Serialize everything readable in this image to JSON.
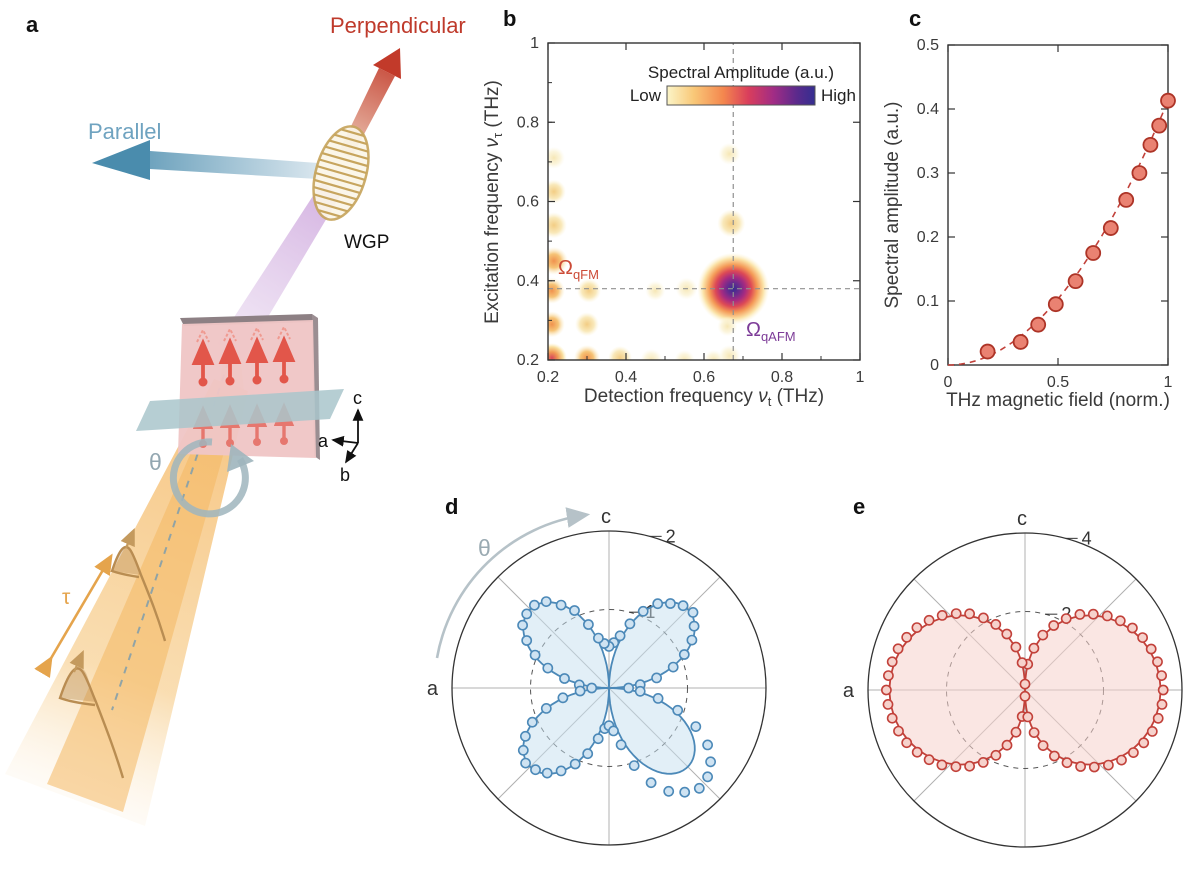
{
  "panels": {
    "a": "a",
    "b": "b",
    "c": "c",
    "d": "d",
    "e": "e"
  },
  "panel_a": {
    "labels": {
      "perpendicular": "Perpendicular",
      "parallel": "Parallel",
      "wgp": "WGP",
      "theta": "θ",
      "tau": "τ",
      "axis_a": "a",
      "axis_b": "b",
      "axis_c": "c"
    },
    "colors": {
      "perpendicular_text": "#bf3a2b",
      "parallel_text": "#6fa3c0",
      "beam_orange": "#f6c179",
      "tau_arrow": "#e5a44c",
      "pulse": "#b98d52",
      "sample_pink": "#efc6c6",
      "spin_red": "#e2564a",
      "plane_teal": "#a9c6cb",
      "purple_beam": "#d5b5e2",
      "wgp_gold": "#c7a55e",
      "theta_gray": "#93a7b1"
    }
  },
  "chart_data": [
    {
      "id": "panel_b",
      "type": "heatmap",
      "xlabel": {
        "pre": "Detection frequency ",
        "sym": "ν",
        "sub": "t",
        "post": " (THz)"
      },
      "ylabel": {
        "pre": "Excitation frequency ",
        "sym": "ν",
        "sub": "τ",
        "post": " (THz)"
      },
      "xlim": [
        0.2,
        1
      ],
      "ylim": [
        0.2,
        1
      ],
      "xticks": [
        0.2,
        0.4,
        0.6,
        0.8,
        1
      ],
      "xtick_labels": [
        "0.2",
        "0.4",
        "0.6",
        "0.8",
        "1"
      ],
      "yticks": [
        0.2,
        0.4,
        0.6,
        0.8,
        1
      ],
      "ytick_labels": [
        "0.2",
        "0.4",
        "0.6",
        "0.8",
        "1"
      ],
      "grid": false,
      "crosshair": {
        "x": 0.675,
        "y": 0.38
      },
      "colorbar": {
        "title": "Spectral Amplitude (a.u.)",
        "low": "Low",
        "high": "High",
        "stops": [
          "#fbf5c8",
          "#f9c878",
          "#f4874e",
          "#d93e5c",
          "#a12c85",
          "#5a2a8c",
          "#342e90"
        ]
      },
      "annotations": [
        {
          "sym": "Ω",
          "sub": "qFM",
          "x": 0.225,
          "y": 0.43,
          "color": "#cc4b37"
        },
        {
          "sym": "Ω",
          "sub": "qAFM",
          "x": 0.7,
          "y": 0.265,
          "color": "#7d3c98"
        }
      ],
      "peaks": [
        {
          "x": 0.675,
          "y": 0.38,
          "level": "main",
          "r": 36
        },
        {
          "x": 0.21,
          "y": 0.205,
          "level": "red",
          "r": 15
        },
        {
          "x": 0.21,
          "y": 0.29,
          "level": "orange",
          "r": 13
        },
        {
          "x": 0.21,
          "y": 0.375,
          "level": "orange",
          "r": 13
        },
        {
          "x": 0.215,
          "y": 0.45,
          "level": "orange",
          "r": 14
        },
        {
          "x": 0.215,
          "y": 0.54,
          "level": "weak",
          "r": 13
        },
        {
          "x": 0.215,
          "y": 0.625,
          "level": "weak",
          "r": 12
        },
        {
          "x": 0.215,
          "y": 0.71,
          "level": "faint",
          "r": 11
        },
        {
          "x": 0.3,
          "y": 0.205,
          "level": "orange",
          "r": 13
        },
        {
          "x": 0.3,
          "y": 0.29,
          "level": "weak",
          "r": 12
        },
        {
          "x": 0.305,
          "y": 0.375,
          "level": "weak",
          "r": 12
        },
        {
          "x": 0.385,
          "y": 0.205,
          "level": "weak",
          "r": 12
        },
        {
          "x": 0.465,
          "y": 0.2,
          "level": "faint",
          "r": 11
        },
        {
          "x": 0.55,
          "y": 0.2,
          "level": "faint",
          "r": 10
        },
        {
          "x": 0.625,
          "y": 0.2,
          "level": "faint",
          "r": 10
        },
        {
          "x": 0.475,
          "y": 0.375,
          "level": "faint",
          "r": 10
        },
        {
          "x": 0.555,
          "y": 0.38,
          "level": "faint",
          "r": 11
        },
        {
          "x": 0.665,
          "y": 0.21,
          "level": "faint",
          "r": 11
        },
        {
          "x": 0.66,
          "y": 0.285,
          "level": "faint",
          "r": 10
        },
        {
          "x": 0.67,
          "y": 0.545,
          "level": "weak",
          "r": 14
        },
        {
          "x": 0.665,
          "y": 0.72,
          "level": "faint",
          "r": 11
        }
      ]
    },
    {
      "id": "panel_c",
      "type": "scatter",
      "xlabel": "THz magnetic field (norm.)",
      "ylabel": "Spectral amplitude (a.u.)",
      "xlim": [
        0,
        1
      ],
      "ylim": [
        0,
        0.5
      ],
      "xticks": [
        0,
        0.5,
        1
      ],
      "xtick_labels": [
        "0",
        "0.5",
        "1"
      ],
      "yticks": [
        0,
        0.1,
        0.2,
        0.3,
        0.4,
        0.5
      ],
      "ytick_labels": [
        "0",
        "0.1",
        "0.2",
        "0.3",
        "0.4",
        "0.5"
      ],
      "x": [
        0.18,
        0.33,
        0.41,
        0.49,
        0.58,
        0.66,
        0.74,
        0.81,
        0.87,
        0.92,
        0.96,
        1.0
      ],
      "y": [
        0.021,
        0.036,
        0.063,
        0.095,
        0.131,
        0.175,
        0.214,
        0.258,
        0.3,
        0.344,
        0.374,
        0.413
      ],
      "fit": {
        "model": "quadratic",
        "coeff": 0.413,
        "style": "dashed"
      },
      "marker": {
        "fill": "#ea8272",
        "stroke": "#ad3427"
      }
    },
    {
      "id": "panel_d",
      "type": "polar",
      "axis_top": "c",
      "axis_left": "a",
      "theta_label": "θ",
      "max_r": 2,
      "rings": [
        1,
        2
      ],
      "ring_labels": [
        "1",
        "2"
      ],
      "curve": {
        "model": "A*|sin(2θ)|^p",
        "A": 1.42,
        "p": 1,
        "harmonic": "sin2"
      },
      "color": {
        "stroke": "#4c89b8",
        "fill": "rgba(198,224,240,0.5)",
        "marker_fill": "#cfe3f2"
      },
      "points_deg_r": [
        [
          0,
          0.25
        ],
        [
          6,
          0.4
        ],
        [
          12,
          0.62
        ],
        [
          18,
          0.86
        ],
        [
          24,
          1.05
        ],
        [
          30,
          1.22
        ],
        [
          36,
          1.34
        ],
        [
          42,
          1.44
        ],
        [
          48,
          1.41
        ],
        [
          54,
          1.33
        ],
        [
          60,
          1.24
        ],
        [
          66,
          1.07
        ],
        [
          72,
          0.86
        ],
        [
          78,
          0.68
        ],
        [
          84,
          0.58
        ],
        [
          90,
          0.53
        ],
        [
          96,
          0.57
        ],
        [
          102,
          0.65
        ],
        [
          108,
          0.85
        ],
        [
          114,
          1.08
        ],
        [
          120,
          1.22
        ],
        [
          126,
          1.36
        ],
        [
          132,
          1.42
        ],
        [
          138,
          1.41
        ],
        [
          144,
          1.36
        ],
        [
          150,
          1.21
        ],
        [
          156,
          1.03
        ],
        [
          162,
          0.82
        ],
        [
          168,
          0.58
        ],
        [
          174,
          0.38
        ],
        [
          180,
          0.22
        ],
        [
          186,
          0.37
        ],
        [
          192,
          0.6
        ],
        [
          198,
          0.84
        ],
        [
          204,
          1.07
        ],
        [
          210,
          1.23
        ],
        [
          216,
          1.35
        ],
        [
          222,
          1.43
        ],
        [
          228,
          1.4
        ],
        [
          234,
          1.34
        ],
        [
          240,
          1.22
        ],
        [
          246,
          1.06
        ],
        [
          252,
          0.88
        ],
        [
          258,
          0.66
        ],
        [
          264,
          0.52
        ],
        [
          270,
          0.48
        ],
        [
          276,
          0.55
        ],
        [
          282,
          0.74
        ],
        [
          288,
          1.04
        ],
        [
          294,
          1.32
        ],
        [
          300,
          1.52
        ],
        [
          306,
          1.64
        ],
        [
          312,
          1.72
        ],
        [
          318,
          1.69
        ],
        [
          324,
          1.6
        ],
        [
          330,
          1.45
        ],
        [
          336,
          1.21
        ],
        [
          342,
          0.92
        ],
        [
          348,
          0.64
        ],
        [
          354,
          0.4
        ]
      ]
    },
    {
      "id": "panel_e",
      "type": "polar",
      "axis_top": "c",
      "axis_left": "a",
      "max_r": 4,
      "rings": [
        2,
        4
      ],
      "ring_labels": [
        "2",
        "4"
      ],
      "curve": {
        "model": "A*|cos(θ)|^p",
        "A": 3.45,
        "p": 0.75,
        "harmonic": "cos"
      },
      "color": {
        "stroke": "#c2413a",
        "fill": "rgba(246,210,204,0.55)",
        "marker_fill": "#f6d2cc"
      },
      "points_deg_r": [
        [
          0,
          3.52
        ],
        [
          6,
          3.5
        ],
        [
          12,
          3.45
        ],
        [
          18,
          3.38
        ],
        [
          24,
          3.28
        ],
        [
          30,
          3.16
        ],
        [
          36,
          3.0
        ],
        [
          42,
          2.82
        ],
        [
          48,
          2.6
        ],
        [
          54,
          2.38
        ],
        [
          60,
          2.1
        ],
        [
          66,
          1.8
        ],
        [
          72,
          1.47
        ],
        [
          78,
          1.09
        ],
        [
          84,
          0.66
        ],
        [
          90,
          0.15
        ],
        [
          96,
          0.7
        ],
        [
          102,
          1.12
        ],
        [
          108,
          1.5
        ],
        [
          114,
          1.83
        ],
        [
          120,
          2.12
        ],
        [
          126,
          2.4
        ],
        [
          132,
          2.62
        ],
        [
          138,
          2.84
        ],
        [
          144,
          3.02
        ],
        [
          150,
          3.18
        ],
        [
          156,
          3.3
        ],
        [
          162,
          3.4
        ],
        [
          168,
          3.46
        ],
        [
          174,
          3.5
        ],
        [
          180,
          3.53
        ],
        [
          186,
          3.51
        ],
        [
          192,
          3.46
        ],
        [
          198,
          3.39
        ],
        [
          204,
          3.3
        ],
        [
          210,
          3.17
        ],
        [
          216,
          3.02
        ],
        [
          222,
          2.85
        ],
        [
          228,
          2.63
        ],
        [
          234,
          2.4
        ],
        [
          240,
          2.13
        ],
        [
          246,
          1.82
        ],
        [
          252,
          1.48
        ],
        [
          258,
          1.1
        ],
        [
          264,
          0.68
        ],
        [
          270,
          0.16
        ],
        [
          276,
          0.69
        ],
        [
          282,
          1.11
        ],
        [
          288,
          1.49
        ],
        [
          294,
          1.84
        ],
        [
          300,
          2.14
        ],
        [
          306,
          2.41
        ],
        [
          312,
          2.64
        ],
        [
          318,
          2.86
        ],
        [
          324,
          3.04
        ],
        [
          330,
          3.19
        ],
        [
          336,
          3.31
        ],
        [
          342,
          3.41
        ],
        [
          348,
          3.47
        ],
        [
          354,
          3.51
        ]
      ]
    }
  ]
}
